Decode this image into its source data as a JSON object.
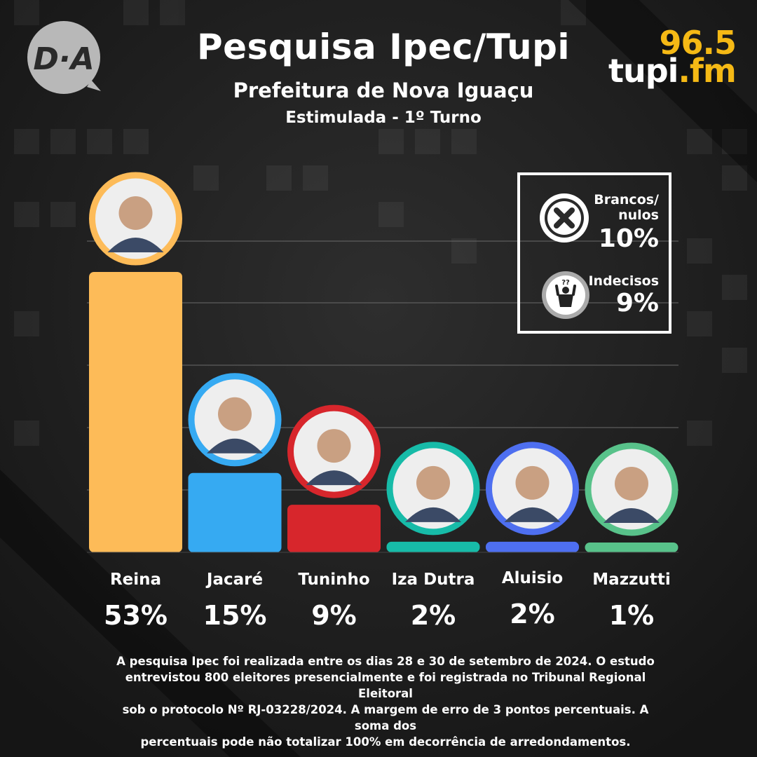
{
  "header": {
    "title": "Pesquisa Ipec/Tupi",
    "subtitle": "Prefeitura de Nova Iguaçu",
    "subtitle2": "Estimulada - 1º Turno"
  },
  "logos": {
    "left_text": "D·A",
    "right_number": "96.5",
    "right_name": "tupi",
    "right_suffix": ".fm"
  },
  "chart_data": {
    "type": "bar",
    "title": "Pesquisa Ipec/Tupi",
    "categories": [
      "Reina",
      "Jacaré",
      "Tuninho",
      "Iza Dutra",
      "Aluisio",
      "Mazzutti"
    ],
    "values": [
      53,
      15,
      9,
      2,
      2,
      1
    ],
    "value_labels": [
      "53%",
      "15%",
      "9%",
      "2%",
      "2%",
      "1%"
    ],
    "colors": [
      "#fdbb58",
      "#36aaf2",
      "#d7262c",
      "#17bba8",
      "#4e6ff0",
      "#58c28a"
    ],
    "grid": true,
    "legend_position": "top-right"
  },
  "side_stats": [
    {
      "label_line1": "Brancos/",
      "label_line2": "nulos",
      "value": "10%",
      "icon": "x-circle-icon"
    },
    {
      "label_line1": "Indecisos",
      "label_line2": "",
      "value": "9%",
      "icon": "undecided-person-icon"
    }
  ],
  "footnote": {
    "lines": [
      "A pesquisa Ipec foi realizada entre os dias 28 e 30 de setembro de 2024.  O estudo",
      "entrevistou 800 eleitores presencialmente e foi registrada no Tribunal Regional Eleitoral",
      "sob o protocolo Nº RJ-03228/2024. A margem de erro de 3 pontos percentuais. A soma dos",
      "percentuais pode não totalizar 100% em decorrência de arredondamentos."
    ]
  },
  "colors": {
    "background": "#1c1c1c",
    "accent_yellow": "#f5b915"
  }
}
